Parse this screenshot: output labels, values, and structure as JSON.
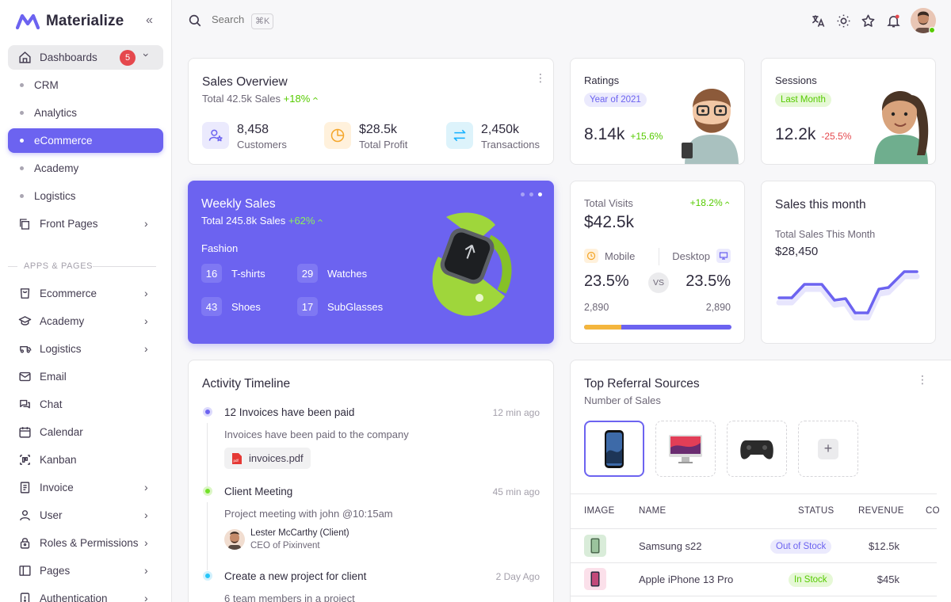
{
  "brand": {
    "name": "Materialize",
    "color": "#6c63f0"
  },
  "sidebar": {
    "dashboards": {
      "label": "Dashboards",
      "badge": "5"
    },
    "sub_items": [
      {
        "label": "CRM"
      },
      {
        "label": "Analytics"
      },
      {
        "label": "eCommerce",
        "active": true
      },
      {
        "label": "Academy"
      },
      {
        "label": "Logistics"
      }
    ],
    "front_pages": {
      "label": "Front Pages"
    },
    "section_label": "APPS & PAGES",
    "apps": [
      {
        "label": "Ecommerce",
        "icon": "cart-icon",
        "chevron": true
      },
      {
        "label": "Academy",
        "icon": "graduation-cap-icon",
        "chevron": true
      },
      {
        "label": "Logistics",
        "icon": "truck-icon",
        "chevron": true
      },
      {
        "label": "Email",
        "icon": "mail-icon",
        "chevron": false
      },
      {
        "label": "Chat",
        "icon": "chat-icon",
        "chevron": false
      },
      {
        "label": "Calendar",
        "icon": "calendar-icon",
        "chevron": false
      },
      {
        "label": "Kanban",
        "icon": "kanban-icon",
        "chevron": false
      },
      {
        "label": "Invoice",
        "icon": "invoice-icon",
        "chevron": true
      },
      {
        "label": "User",
        "icon": "user-icon",
        "chevron": true
      },
      {
        "label": "Roles & Permissions",
        "icon": "lock-icon",
        "chevron": true
      },
      {
        "label": "Pages",
        "icon": "pages-icon",
        "chevron": true
      },
      {
        "label": "Authentication",
        "icon": "auth-icon",
        "chevron": true
      }
    ]
  },
  "search": {
    "placeholder": "Search",
    "shortcut": "⌘K"
  },
  "sales_overview": {
    "title": "Sales Overview",
    "subtitle": "Total 42.5k Sales",
    "growth": "+18%",
    "stats": [
      {
        "value": "8,458",
        "label": "Customers",
        "icon": "user-star-icon",
        "bg": "#ebeafd",
        "fg": "#6c63f0"
      },
      {
        "value": "$28.5k",
        "label": "Total Profit",
        "icon": "pie-chart-icon",
        "bg": "#fff1dc",
        "fg": "#f4a62a"
      },
      {
        "value": "2,450k",
        "label": "Transactions",
        "icon": "transfer-icon",
        "bg": "#ddf3fb",
        "fg": "#16b1ff"
      }
    ]
  },
  "ratings": {
    "title": "Ratings",
    "chip": "Year of 2021",
    "value": "8.14k",
    "change": "+15.6%"
  },
  "sessions": {
    "title": "Sessions",
    "chip": "Last Month",
    "value": "12.2k",
    "change": "-25.5%"
  },
  "weekly_sales": {
    "title": "Weekly Sales",
    "subtitle": "Total 245.8k Sales",
    "growth": "+62%",
    "category": "Fashion",
    "items": [
      {
        "count": "16",
        "label": "T-shirts"
      },
      {
        "count": "29",
        "label": "Watches"
      },
      {
        "count": "43",
        "label": "Shoes"
      },
      {
        "count": "17",
        "label": "SubGlasses"
      }
    ]
  },
  "total_visits": {
    "title": "Total Visits",
    "change": "+18.2%",
    "value": "$42.5k",
    "mobile": {
      "label": "Mobile",
      "percent": "23.5%",
      "count": "2,890"
    },
    "desktop": {
      "label": "Desktop",
      "percent": "23.5%",
      "count": "2,890"
    },
    "vs": "VS",
    "mobile_share": 0.25
  },
  "sales_month": {
    "title": "Sales this month",
    "subtitle": "Total Sales This Month",
    "value": "$28,450"
  },
  "timeline": {
    "title": "Activity Timeline",
    "events": [
      {
        "title": "12 Invoices have been paid",
        "time": "12 min ago",
        "desc": "Invoices have been paid to the company",
        "color": "#6c63f0",
        "attachment": "invoices.pdf"
      },
      {
        "title": "Client Meeting",
        "time": "45 min ago",
        "desc": "Project meeting with john @10:15am",
        "color": "#72e128",
        "person": "Lester McCarthy (Client)",
        "person_role": "CEO of Pixinvent"
      },
      {
        "title": "Create a new project for client",
        "time": "2 Day Ago",
        "desc": "6 team members in a project",
        "color": "#26c6f9"
      }
    ]
  },
  "referral": {
    "title": "Top Referral Sources",
    "subtitle": "Number of Sales",
    "headers": [
      "IMAGE",
      "NAME",
      "STATUS",
      "REVENUE",
      "CO"
    ],
    "rows": [
      {
        "name": "Samsung s22",
        "status": "Out of Stock",
        "status_bg": "#ebeafd",
        "status_fg": "#6c63f0",
        "revenue": "$12.5k"
      },
      {
        "name": "Apple iPhone 13 Pro",
        "status": "In Stock",
        "status_bg": "#e6f8d6",
        "status_fg": "#56ca00",
        "revenue": "$45k"
      }
    ]
  }
}
